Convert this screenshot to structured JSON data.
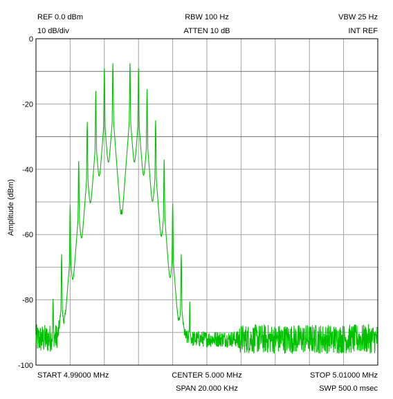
{
  "header": {
    "ref": "REF 0.0 dBm",
    "scale": "10 dB/div",
    "rbw": "RBW 100 Hz",
    "atten": "ATTEN 10 dB",
    "vbw": "VBW 25 Hz",
    "ref_source": "INT REF"
  },
  "footer": {
    "start": "START 4.99000 MHz",
    "center": "CENTER 5.000 MHz",
    "stop": "STOP 5.01000 MHz",
    "span": "SPAN 20.000 KHz",
    "sweep": "SWP 500.0 msec"
  },
  "colors": {
    "trace": "#00c000",
    "grid": "#a0a0a0",
    "grid_major": "#707070"
  },
  "chart_data": {
    "type": "line",
    "ylabel": "Amplitude (dBm)",
    "ylim": [
      -100,
      0
    ],
    "y_ticks": [
      "0",
      "-20",
      "-40",
      "-60",
      "-80",
      "-100"
    ],
    "y_tick_values": [
      0,
      -20,
      -40,
      -60,
      -80,
      -100
    ],
    "xlim_mhz": [
      4.99,
      5.01
    ],
    "noise_floor_dbm": -92,
    "peaks": [
      {
        "f_mhz": 4.991,
        "dbm": -80
      },
      {
        "f_mhz": 4.9915,
        "dbm": -66
      },
      {
        "f_mhz": 4.992,
        "dbm": -51
      },
      {
        "f_mhz": 4.9925,
        "dbm": -37.5
      },
      {
        "f_mhz": 4.993,
        "dbm": -25.5
      },
      {
        "f_mhz": 4.9935,
        "dbm": -16
      },
      {
        "f_mhz": 4.994,
        "dbm": -9
      },
      {
        "f_mhz": 4.9945,
        "dbm": -7.5
      },
      {
        "f_mhz": 4.995,
        "dbm": -56.5
      },
      {
        "f_mhz": 4.9955,
        "dbm": -7.5
      },
      {
        "f_mhz": 4.996,
        "dbm": -9
      },
      {
        "f_mhz": 4.9965,
        "dbm": -15.5
      },
      {
        "f_mhz": 4.997,
        "dbm": -25
      },
      {
        "f_mhz": 4.9975,
        "dbm": -37
      },
      {
        "f_mhz": 4.998,
        "dbm": -50.5
      },
      {
        "f_mhz": 4.9985,
        "dbm": -66
      },
      {
        "f_mhz": 4.999,
        "dbm": -81
      }
    ]
  }
}
